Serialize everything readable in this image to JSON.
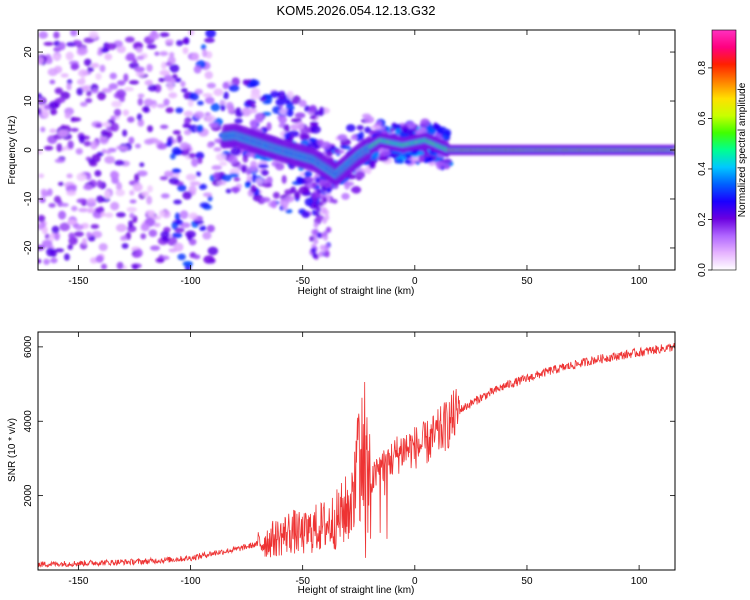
{
  "title": "KOM5.2026.054.12.13.G32",
  "chart_data": [
    {
      "type": "heatmap",
      "xlabel": "Height of straight line (km)",
      "ylabel": "Frequency (Hz)",
      "xlim": [
        -168,
        116
      ],
      "ylim": [
        -24.5,
        24.5
      ],
      "xticks": [
        -150,
        -100,
        -50,
        0,
        50,
        100
      ],
      "xtick_labels": [
        "-150",
        "-100",
        "-50",
        "0",
        "50",
        "100"
      ],
      "yticks": [
        -20,
        -10,
        0,
        10,
        20
      ],
      "ytick_labels": [
        "-20",
        "-10",
        "0",
        "10",
        "20"
      ],
      "colorbar": {
        "label": "Normalized spectral amplitude",
        "range": [
          0,
          0.95
        ],
        "ticks": [
          0.0,
          0.2,
          0.4,
          0.6,
          0.8
        ],
        "tick_labels": [
          "0.0",
          "0.2",
          "0.4",
          "0.6",
          "0.8"
        ],
        "colors": [
          "#ffffff",
          "#e6b3ff",
          "#b066ff",
          "#6a00e0",
          "#1a00ff",
          "#0060ff",
          "#00c8ff",
          "#00ff90",
          "#40ff00",
          "#c8ff00",
          "#ffe000",
          "#ff8000",
          "#ff2000",
          "#ff0080",
          "#ff30c0"
        ]
      },
      "ridge_description_points": {
        "x": [
          -100,
          -80,
          -60,
          -45,
          -35,
          -25,
          -15,
          -5,
          5,
          15,
          50,
          100,
          116
        ],
        "y": [
          2,
          3,
          0,
          -2,
          -5,
          -1,
          2,
          1,
          2,
          0,
          0,
          0,
          0
        ]
      }
    },
    {
      "type": "line",
      "xlabel": "Height of straight line (km)",
      "ylabel": "SNR (10 * v/v)",
      "xlim": [
        -168,
        116
      ],
      "ylim": [
        0,
        6400
      ],
      "xticks": [
        -150,
        -100,
        -50,
        0,
        50,
        100
      ],
      "xtick_labels": [
        "-150",
        "-100",
        "-50",
        "0",
        "50",
        "100"
      ],
      "yticks": [
        2000,
        4000,
        6000
      ],
      "ytick_labels": [
        "2000",
        "4000",
        "6000"
      ],
      "series": [
        {
          "name": "SNR",
          "color": "#ee3333",
          "envelope_x": [
            -168,
            -150,
            -120,
            -100,
            -90,
            -80,
            -70,
            -60,
            -55,
            -50,
            -45,
            -40,
            -35,
            -30,
            -27,
            -25,
            -22,
            -20,
            -15,
            -10,
            -5,
            0,
            5,
            10,
            15,
            20,
            30,
            40,
            50,
            60,
            70,
            80,
            90,
            100,
            110,
            116
          ],
          "envelope_y": [
            150,
            180,
            230,
            320,
            450,
            550,
            700,
            900,
            1050,
            950,
            1100,
            1200,
            1350,
            1650,
            2000,
            3400,
            2700,
            2300,
            2800,
            3000,
            3250,
            3300,
            3400,
            3650,
            3950,
            4300,
            4650,
            4950,
            5150,
            5350,
            5500,
            5650,
            5750,
            5850,
            5950,
            6000
          ]
        }
      ]
    }
  ]
}
